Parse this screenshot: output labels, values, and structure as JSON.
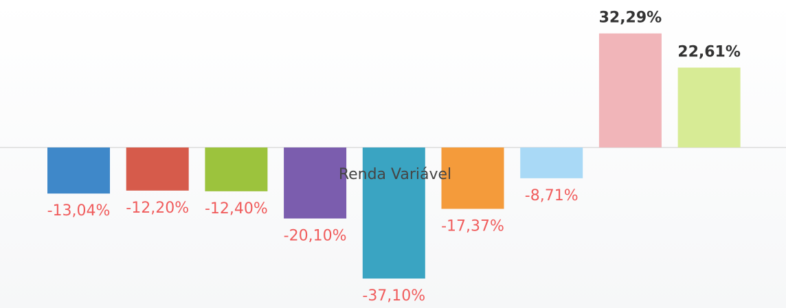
{
  "chart_data": {
    "type": "bar",
    "x_label": "Renda Variável",
    "categories": [
      null,
      null,
      null,
      null,
      null,
      null,
      null,
      null,
      null
    ],
    "values": [
      -13.04,
      -12.2,
      -12.4,
      -20.1,
      -37.1,
      -17.37,
      -8.71,
      32.29,
      22.61
    ],
    "value_labels": [
      "-13,04%",
      "-12,20%",
      "-12,40%",
      "-20,10%",
      "-37,10%",
      "-17,37%",
      "-8,71%",
      "32,29%",
      "22,61%"
    ],
    "colors": [
      "#3f88c9",
      "#d65b4b",
      "#9cc33d",
      "#7b5dae",
      "#3aa4c2",
      "#f49b3b",
      "#a9d9f6",
      "#f1b5b9",
      "#d7eb95"
    ]
  }
}
